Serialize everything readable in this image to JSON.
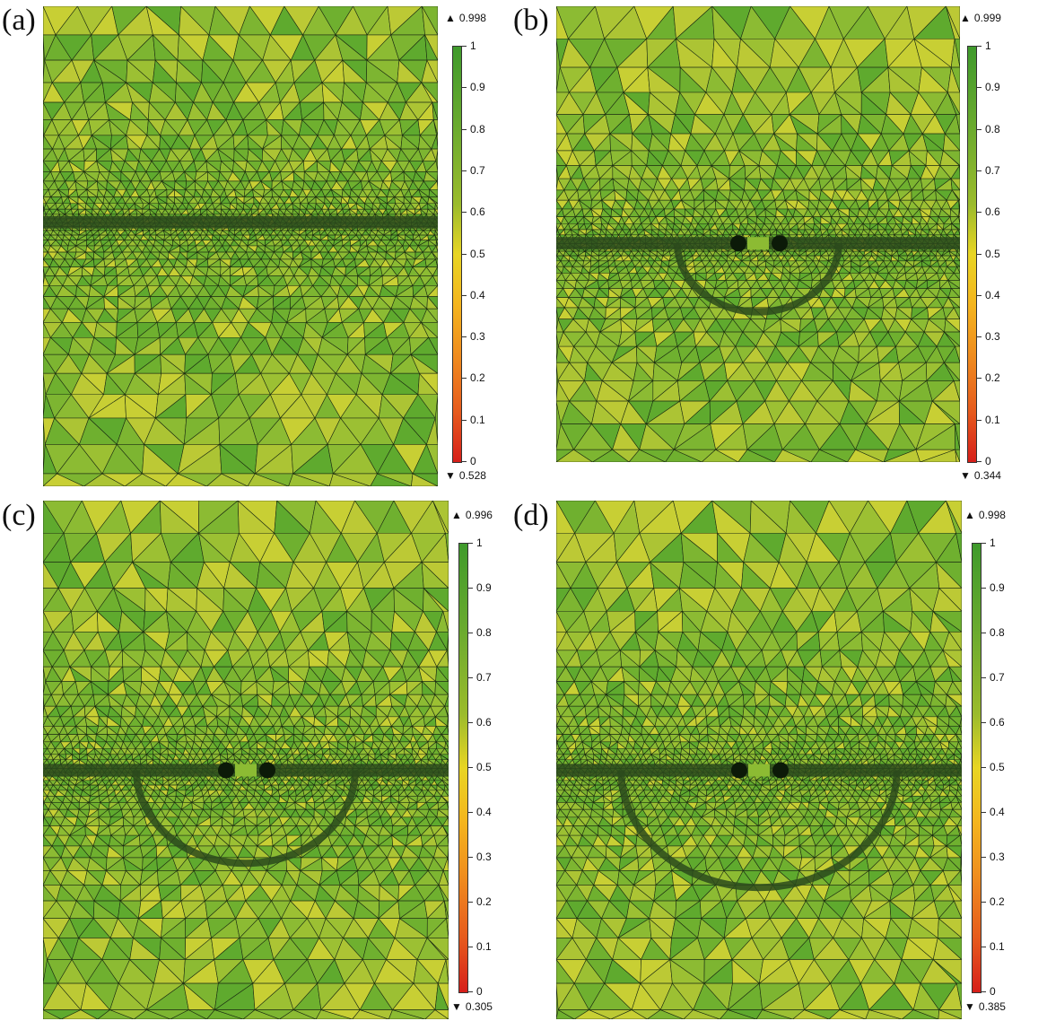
{
  "panels": [
    {
      "label": "(a)",
      "max": "0.998",
      "min": "0.528",
      "hole": null
    },
    {
      "label": "(b)",
      "max": "0.999",
      "min": "0.344",
      "hole": {
        "r": 0.2
      }
    },
    {
      "label": "(c)",
      "max": "0.996",
      "min": "0.305",
      "hole": {
        "r": 0.27
      }
    },
    {
      "label": "(d)",
      "max": "0.998",
      "min": "0.385",
      "hole": {
        "r": 0.34
      }
    }
  ],
  "colorbar": {
    "ticks": [
      "1",
      "0.9",
      "0.8",
      "0.7",
      "0.6",
      "0.5",
      "0.4",
      "0.3",
      "0.2",
      "0.1",
      "0"
    ],
    "max_icon": "triangle-up-icon",
    "min_icon": "triangle-down-icon"
  },
  "colors": {
    "mesh_palette": [
      "#5faa2e",
      "#6fb02f",
      "#7db531",
      "#8cbb33",
      "#9cc033",
      "#acc434",
      "#bcc935",
      "#c8cf34"
    ],
    "edge": "#1a2a12",
    "background": "#ffffff"
  }
}
